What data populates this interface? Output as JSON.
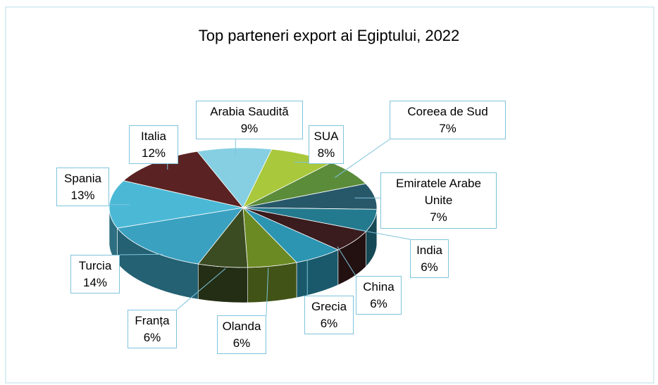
{
  "chart_data": {
    "type": "pie3d",
    "title": "Top parteneri export  ai Egiptului, 2022",
    "categories": [
      "Arabia Saudită",
      "SUA",
      "Coreea de Sud",
      "Emiratele Arabe Unite",
      "India",
      "China",
      "Grecia",
      "Olanda",
      "Franța",
      "Turcia",
      "Spania",
      "Italia"
    ],
    "values": [
      9,
      8,
      7,
      7,
      6,
      6,
      6,
      6,
      6,
      14,
      13,
      12
    ],
    "value_labels": [
      "9%",
      "8%",
      "7%",
      "7%",
      "6%",
      "6%",
      "6%",
      "6%",
      "6%",
      "14%",
      "13%",
      "12%"
    ],
    "colors": [
      "#86cfe2",
      "#a9c83c",
      "#5b8c3a",
      "#27586a",
      "#237a8e",
      "#3a1c1e",
      "#2b95b2",
      "#6c8a24",
      "#3b4c22",
      "#3ba1c0",
      "#4bb9d6",
      "#5a2222"
    ]
  }
}
